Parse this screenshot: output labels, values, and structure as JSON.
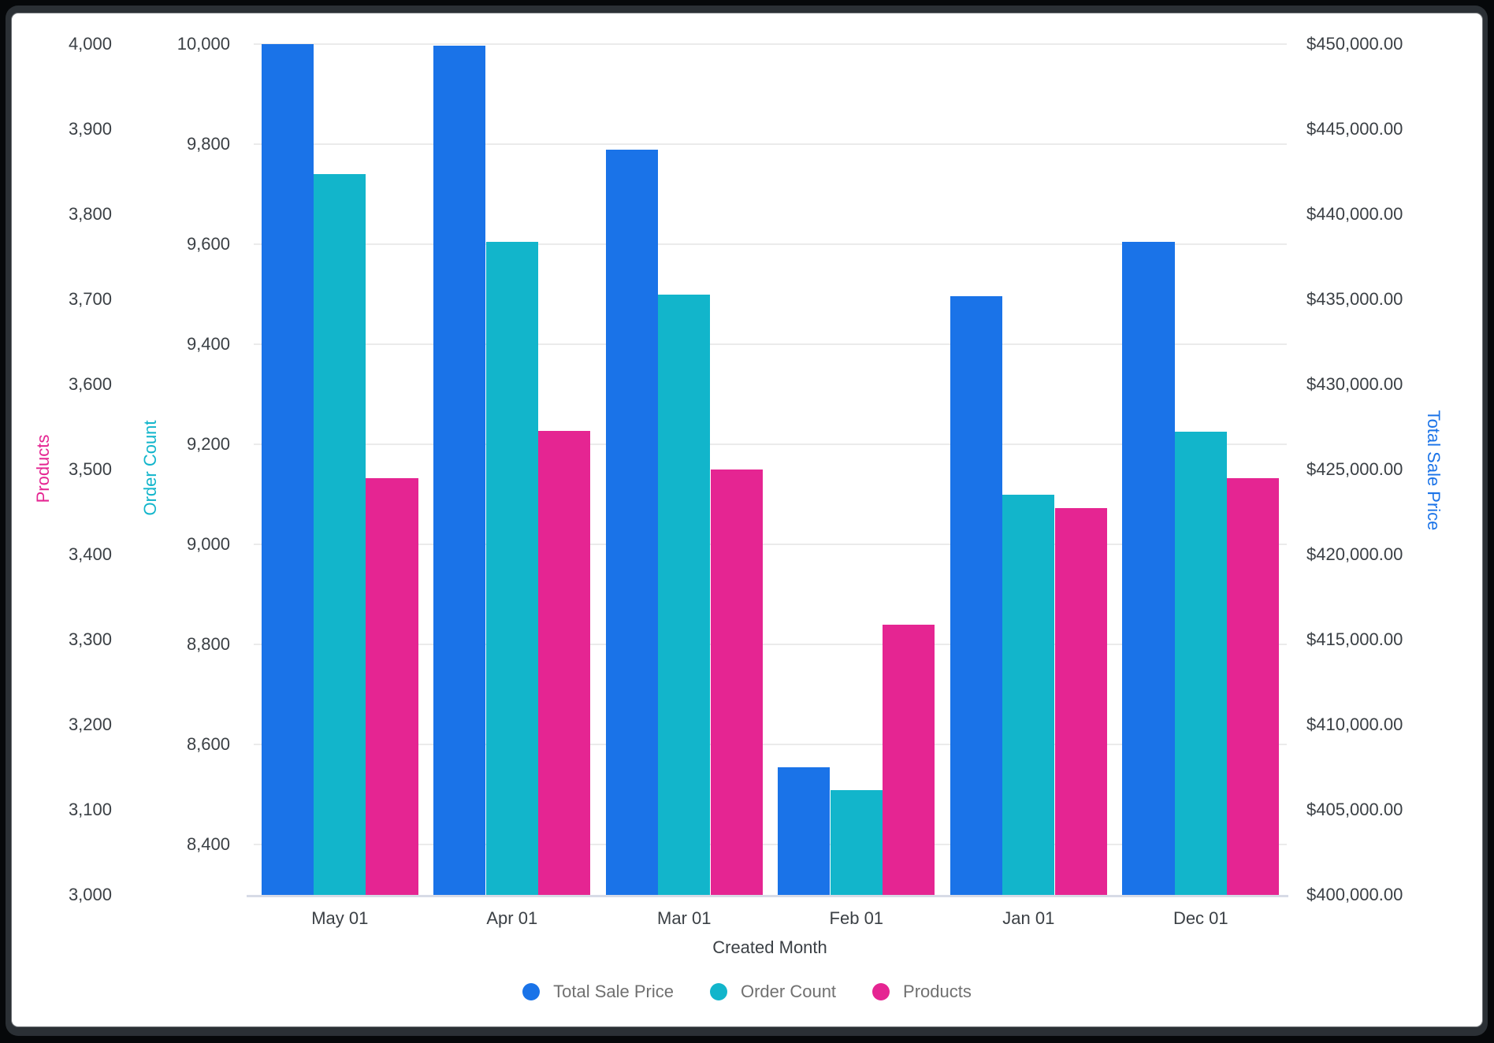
{
  "window": {
    "outer_bg": "#06080a",
    "frame_bg": "#2b3035",
    "card_bg": "#ffffff"
  },
  "chart_data": {
    "type": "bar",
    "title": "",
    "xlabel": "Created Month",
    "categories": [
      "May 01",
      "Apr 01",
      "Mar 01",
      "Feb 01",
      "Jan 01",
      "Dec 01"
    ],
    "series": [
      {
        "name": "Total Sale Price",
        "axis": "price",
        "color": "#1A73E8",
        "values": [
          450000,
          449900,
          443800,
          407500,
          435200,
          438400
        ]
      },
      {
        "name": "Order Count",
        "axis": "count",
        "color": "#12B5CB",
        "values": [
          9740,
          9605,
          9500,
          8510,
          9100,
          9225
        ]
      },
      {
        "name": "Products",
        "axis": "products",
        "color": "#E52592",
        "values": [
          3490,
          3545,
          3500,
          3318,
          3455,
          3490
        ]
      }
    ],
    "axes": {
      "products": {
        "title": "Products",
        "color": "#E52592",
        "side": "left-outer",
        "min": 3000,
        "max": 4000,
        "ticks": [
          {
            "v": 4000,
            "label": "4,000"
          },
          {
            "v": 3900,
            "label": "3,900"
          },
          {
            "v": 3800,
            "label": "3,800"
          },
          {
            "v": 3700,
            "label": "3,700"
          },
          {
            "v": 3600,
            "label": "3,600"
          },
          {
            "v": 3500,
            "label": "3,500"
          },
          {
            "v": 3400,
            "label": "3,400"
          },
          {
            "v": 3300,
            "label": "3,300"
          },
          {
            "v": 3200,
            "label": "3,200"
          },
          {
            "v": 3100,
            "label": "3,100"
          },
          {
            "v": 3000,
            "label": "3,000"
          }
        ]
      },
      "count": {
        "title": "Order Count",
        "color": "#12B5CB",
        "side": "left-inner",
        "min": 8300,
        "max": 10000,
        "grid": true,
        "ticks": [
          {
            "v": 10000,
            "label": "10,000"
          },
          {
            "v": 9800,
            "label": "9,800"
          },
          {
            "v": 9600,
            "label": "9,600"
          },
          {
            "v": 9400,
            "label": "9,400"
          },
          {
            "v": 9200,
            "label": "9,200"
          },
          {
            "v": 9000,
            "label": "9,000"
          },
          {
            "v": 8800,
            "label": "8,800"
          },
          {
            "v": 8600,
            "label": "8,600"
          },
          {
            "v": 8400,
            "label": "8,400"
          }
        ]
      },
      "price": {
        "title": "Total Sale Price",
        "color": "#1A73E8",
        "side": "right",
        "min": 400000,
        "max": 450000,
        "ticks": [
          {
            "v": 450000,
            "label": "$450,000.00"
          },
          {
            "v": 445000,
            "label": "$445,000.00"
          },
          {
            "v": 440000,
            "label": "$440,000.00"
          },
          {
            "v": 435000,
            "label": "$435,000.00"
          },
          {
            "v": 430000,
            "label": "$430,000.00"
          },
          {
            "v": 425000,
            "label": "$425,000.00"
          },
          {
            "v": 420000,
            "label": "$420,000.00"
          },
          {
            "v": 415000,
            "label": "$415,000.00"
          },
          {
            "v": 410000,
            "label": "$410,000.00"
          },
          {
            "v": 405000,
            "label": "$405,000.00"
          },
          {
            "v": 400000,
            "label": "$400,000.00"
          }
        ]
      }
    },
    "legend": {
      "position": "bottom-center",
      "entries": [
        "Total Sale Price",
        "Order Count",
        "Products"
      ]
    },
    "grid_on": true,
    "colors": {
      "grid_line": "#ebebeb",
      "axis_baseline": "#d7dbe6",
      "tick_text": "#3b4045",
      "legend_text": "#707070"
    }
  }
}
